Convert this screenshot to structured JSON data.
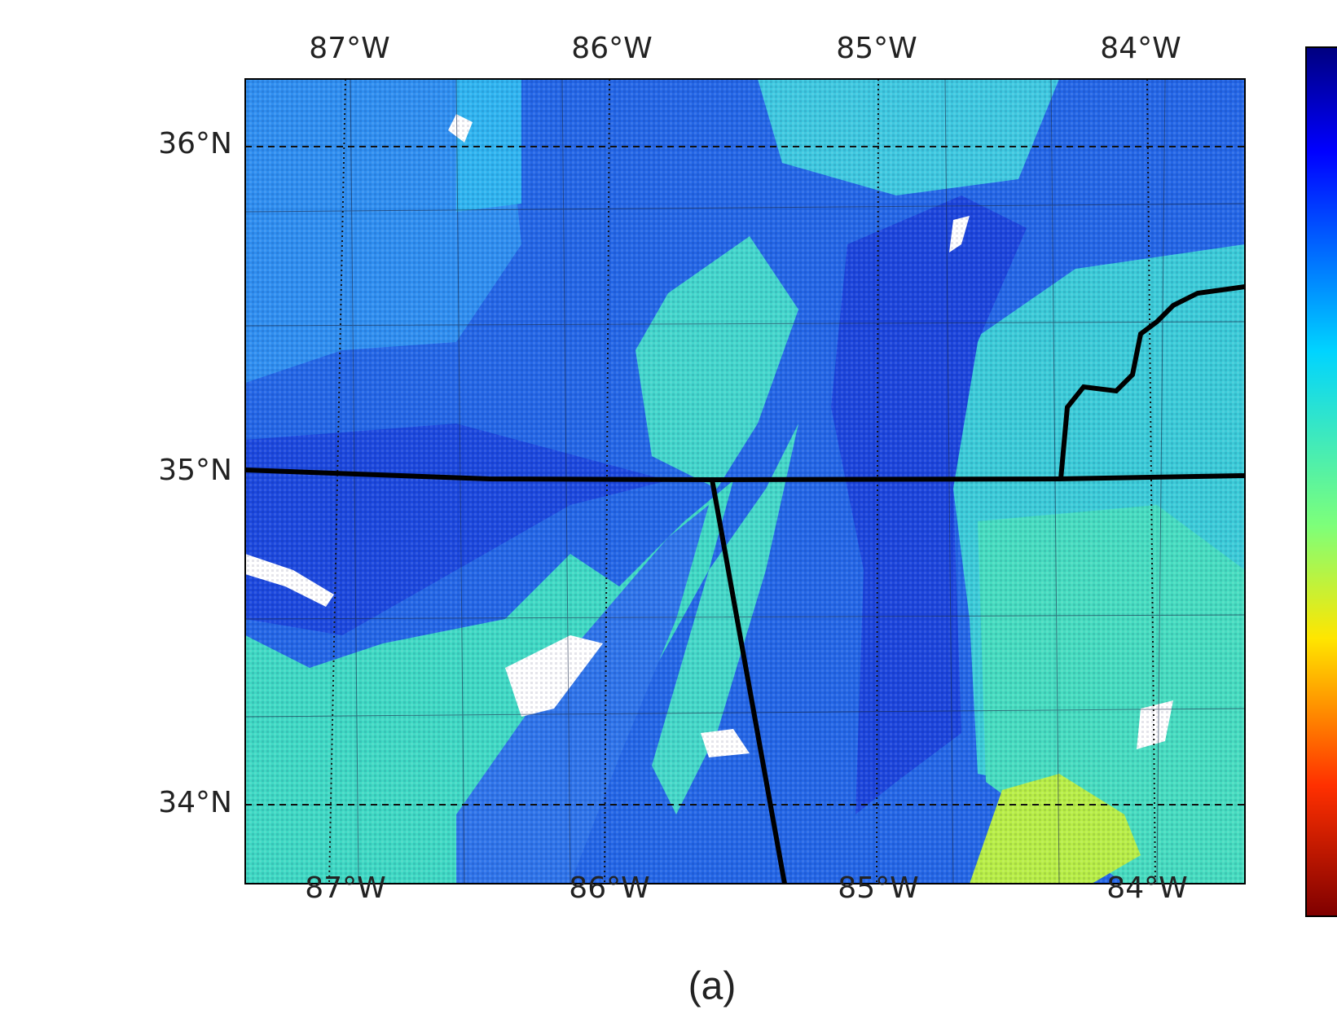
{
  "map": {
    "top_lon_labels": [
      "87°W",
      "86°W",
      "85°W",
      "84°W"
    ],
    "bottom_lon_labels": [
      "87°W",
      "86°W",
      "85°W",
      "84°W"
    ],
    "lat_labels": [
      "36°N",
      "35°N",
      "34°N"
    ]
  },
  "caption": "(a)"
}
